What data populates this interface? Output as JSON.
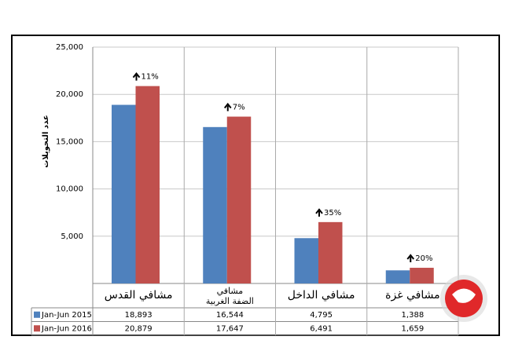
{
  "chart_data": {
    "type": "bar",
    "y_label": "عدد التحويلات",
    "categories": [
      "مشافي القدس",
      "مشافي\nالضفة الغربية",
      "مشافي الداخل",
      "مشافي غزة"
    ],
    "series": [
      {
        "name": "Jan-Jun 2015",
        "color": "#4f81bd",
        "values": [
          18893,
          16544,
          4795,
          1388
        ],
        "value_labels": [
          "18,893",
          "16,544",
          "4,795",
          "1,388"
        ]
      },
      {
        "name": "Jan-Jun 2016",
        "color": "#c0504d",
        "values": [
          20879,
          17647,
          6491,
          1659
        ],
        "value_labels": [
          "20,879",
          "17,647",
          "6,491",
          "1,659"
        ]
      }
    ],
    "annotations": [
      "11%",
      "7%",
      "35%",
      "20%"
    ],
    "ylim": [
      0,
      25000
    ],
    "yticks": [
      {
        "value": 5000,
        "label": "5,000"
      },
      {
        "value": 10000,
        "label": "10,000"
      },
      {
        "value": 15000,
        "label": "15,000"
      },
      {
        "value": 20000,
        "label": "20,000"
      },
      {
        "value": 25000,
        "label": "25,000"
      }
    ],
    "grid": true
  }
}
